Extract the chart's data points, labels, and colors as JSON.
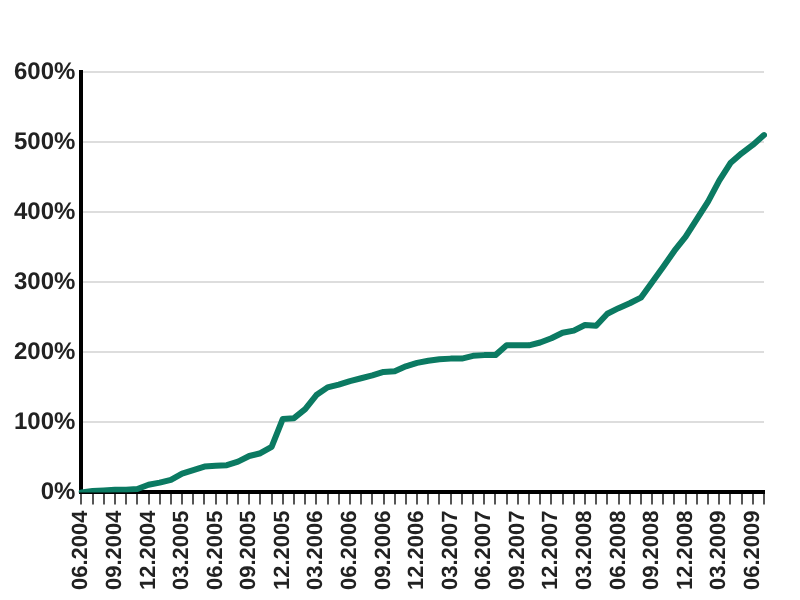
{
  "chart_data": {
    "type": "line",
    "categories": [
      "06.2004",
      null,
      null,
      "09.2004",
      null,
      null,
      "12.2004",
      null,
      null,
      "03.2005",
      null,
      null,
      "06.2005",
      null,
      null,
      "09.2005",
      null,
      null,
      "12.2005",
      null,
      null,
      "03.2006",
      null,
      null,
      "06.2006",
      null,
      null,
      "09.2006",
      null,
      null,
      "12.2006",
      null,
      null,
      "03.2007",
      null,
      null,
      "06.2007",
      null,
      null,
      "09.2007",
      null,
      null,
      "12.2007",
      null,
      null,
      "03.2008",
      null,
      null,
      "06.2008",
      null,
      null,
      "09.2008",
      null,
      null,
      "12.2008",
      null,
      null,
      "03.2009",
      null,
      null,
      "06.2009",
      null
    ],
    "series": [
      {
        "color": "#0b7a62",
        "values": [
          0,
          2,
          3,
          4,
          4,
          5,
          11,
          14,
          18,
          27,
          32,
          37,
          38,
          39,
          44,
          52,
          56,
          65,
          105,
          106,
          119,
          139,
          150,
          154,
          159,
          163,
          167,
          172,
          173,
          180,
          185,
          188,
          190,
          191,
          191,
          195,
          196,
          196,
          210,
          210,
          210,
          214,
          220,
          228,
          231,
          239,
          238,
          255,
          263,
          270,
          278,
          300,
          322,
          345,
          365,
          390,
          415,
          445,
          470,
          484,
          496,
          510
        ]
      }
    ],
    "ylim": [
      0,
      600
    ],
    "yticks": [
      {
        "value": 0,
        "label": "0%"
      },
      {
        "value": 100,
        "label": "100%"
      },
      {
        "value": 200,
        "label": "200%"
      },
      {
        "value": 300,
        "label": "300%"
      },
      {
        "value": 400,
        "label": "400%"
      },
      {
        "value": 500,
        "label": "500%"
      },
      {
        "value": 600,
        "label": "600%"
      }
    ],
    "grid": "y",
    "legend": false,
    "marker": "none",
    "line_style": "solid"
  }
}
